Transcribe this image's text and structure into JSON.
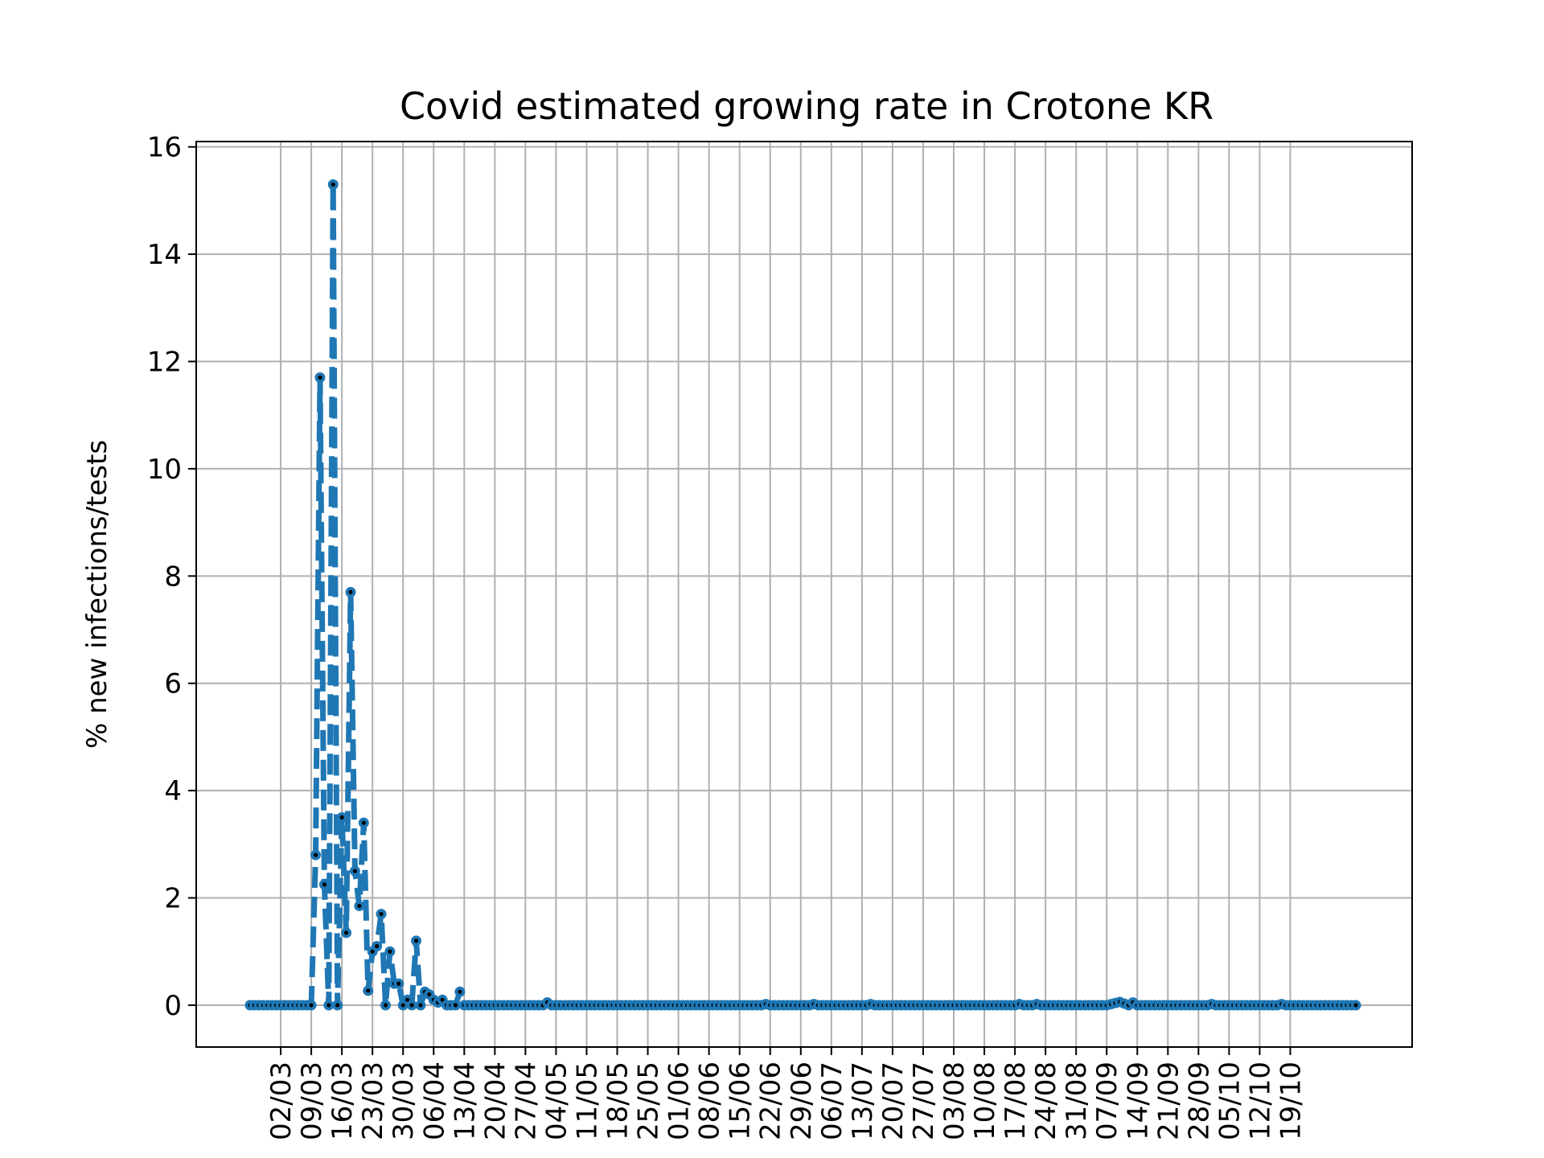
{
  "chart_data": {
    "type": "line",
    "title": "Covid estimated growing rate in Crotone KR",
    "xlabel": "",
    "ylabel": "% new infections/tests",
    "ylim": [
      -0.78,
      16.1
    ],
    "yticks": [
      0,
      2,
      4,
      6,
      8,
      10,
      12,
      14,
      16
    ],
    "grid": true,
    "legend": "none",
    "colors": {
      "line": "#1f77b4",
      "marker_center": "#000000",
      "grid": "#b0b0b0"
    },
    "line_style": "dashed",
    "x_start_date": "2020-02-24",
    "x_tick_labels": [
      "02/03",
      "09/03",
      "16/03",
      "23/03",
      "30/03",
      "06/04",
      "13/04",
      "20/04",
      "27/04",
      "04/05",
      "11/05",
      "18/05",
      "25/05",
      "01/06",
      "08/06",
      "15/06",
      "22/06",
      "29/06",
      "06/07",
      "13/07",
      "20/07",
      "27/07",
      "03/08",
      "10/08",
      "17/08",
      "24/08",
      "31/08",
      "07/09",
      "14/09",
      "21/09",
      "28/09",
      "05/10",
      "12/10",
      "19/10"
    ],
    "series": [
      {
        "values": [
          0,
          0,
          0,
          0,
          0,
          0,
          0,
          0,
          0,
          0,
          0,
          0,
          0,
          0,
          0,
          2.8,
          11.7,
          2.25,
          0,
          15.3,
          0,
          3.5,
          1.35,
          7.7,
          2.5,
          1.85,
          3.4,
          0.27,
          1.0,
          1.1,
          1.7,
          0,
          1.0,
          0.4,
          0.4,
          0,
          0.1,
          0,
          1.2,
          0,
          0.25,
          0.2,
          0.1,
          0.05,
          0.1,
          0,
          0,
          0,
          0.25,
          0,
          0,
          0,
          0,
          0,
          0,
          0,
          0,
          0,
          0,
          0,
          0,
          0,
          0,
          0,
          0,
          0,
          0,
          0,
          0.05,
          0,
          0,
          0,
          0,
          0,
          0,
          0,
          0,
          0,
          0,
          0,
          0,
          0,
          0,
          0,
          0,
          0,
          0,
          0,
          0,
          0,
          0,
          0,
          0,
          0,
          0,
          0,
          0,
          0,
          0,
          0,
          0,
          0,
          0,
          0,
          0,
          0,
          0,
          0,
          0,
          0,
          0,
          0,
          0,
          0,
          0,
          0,
          0,
          0,
          0.02,
          0,
          0,
          0,
          0,
          0,
          0,
          0,
          0,
          0,
          0,
          0.02,
          0,
          0,
          0,
          0,
          0,
          0,
          0,
          0,
          0,
          0,
          0,
          0,
          0.02,
          0,
          0,
          0,
          0,
          0,
          0,
          0,
          0,
          0,
          0,
          0,
          0,
          0,
          0,
          0,
          0,
          0,
          0,
          0,
          0,
          0,
          0,
          0,
          0,
          0,
          0,
          0,
          0,
          0,
          0,
          0,
          0,
          0,
          0.02,
          0,
          0,
          0,
          0.02,
          0,
          0,
          0,
          0,
          0,
          0,
          0,
          0,
          0,
          0,
          0,
          0,
          0,
          0,
          0,
          0,
          0.02,
          0.04,
          0.06,
          0.03,
          0,
          0.05,
          0,
          0,
          0,
          0,
          0,
          0,
          0,
          0,
          0,
          0,
          0,
          0,
          0,
          0,
          0,
          0,
          0,
          0.02,
          0,
          0,
          0,
          0,
          0,
          0,
          0,
          0,
          0,
          0,
          0,
          0,
          0,
          0,
          0,
          0.02,
          0,
          0,
          0,
          0,
          0,
          0,
          0,
          0,
          0,
          0,
          0,
          0,
          0,
          0,
          0,
          0,
          0
        ]
      }
    ]
  }
}
